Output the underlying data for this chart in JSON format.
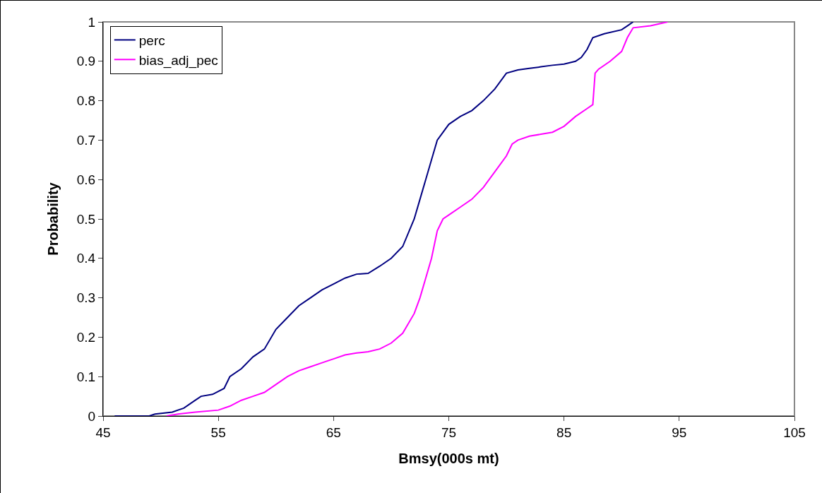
{
  "chart_data": {
    "type": "line",
    "xlabel": "Bmsy(000s mt)",
    "ylabel": "Probability",
    "xlim": [
      45,
      105
    ],
    "xticks": [
      45,
      55,
      65,
      75,
      85,
      95,
      105
    ],
    "ylim": [
      0,
      1
    ],
    "yticks": [
      0,
      0.1,
      0.2,
      0.3,
      0.4,
      0.5,
      0.6,
      0.7,
      0.8,
      0.9,
      1
    ],
    "grid": false,
    "legend": "top left",
    "marker": "none",
    "line_style": "solid",
    "series": [
      {
        "name": "perc",
        "color": "#000080",
        "x": [
          46,
          49,
          49.5,
          51,
          52,
          53,
          53.5,
          54.5,
          55.5,
          56,
          57,
          58,
          59,
          60,
          61,
          62,
          63,
          64,
          65,
          66,
          67,
          68,
          69,
          70,
          71,
          72,
          72.5,
          73,
          73.5,
          74,
          75,
          76,
          77,
          78,
          79,
          80,
          81,
          82,
          83,
          84,
          85,
          86,
          86.5,
          87,
          87.5,
          88.5,
          90,
          90.5,
          91
        ],
        "values": [
          0,
          0,
          0.005,
          0.01,
          0.02,
          0.04,
          0.05,
          0.055,
          0.07,
          0.1,
          0.12,
          0.15,
          0.17,
          0.22,
          0.25,
          0.28,
          0.3,
          0.32,
          0.335,
          0.35,
          0.36,
          0.362,
          0.38,
          0.4,
          0.43,
          0.5,
          0.55,
          0.6,
          0.65,
          0.7,
          0.74,
          0.76,
          0.775,
          0.8,
          0.83,
          0.87,
          0.878,
          0.882,
          0.886,
          0.89,
          0.893,
          0.9,
          0.91,
          0.93,
          0.96,
          0.97,
          0.98,
          0.99,
          1
        ]
      },
      {
        "name": "bias_adj_pec",
        "color": "#ff00ff",
        "x": [
          50.5,
          51.5,
          53,
          55,
          56,
          57,
          58,
          59,
          60,
          61,
          62,
          63,
          64,
          65,
          66,
          67,
          68,
          69,
          70,
          71,
          72,
          72.5,
          73,
          73.5,
          74,
          74.5,
          75,
          76,
          77,
          78,
          79,
          80,
          80.5,
          81,
          82,
          83,
          84,
          85,
          86,
          87,
          87.5,
          87.7,
          88,
          89,
          90,
          90.5,
          91,
          92.5,
          94
        ],
        "values": [
          0,
          0.005,
          0.01,
          0.015,
          0.025,
          0.04,
          0.05,
          0.06,
          0.08,
          0.1,
          0.115,
          0.125,
          0.135,
          0.145,
          0.155,
          0.16,
          0.163,
          0.17,
          0.185,
          0.21,
          0.26,
          0.3,
          0.35,
          0.4,
          0.47,
          0.5,
          0.51,
          0.53,
          0.55,
          0.58,
          0.62,
          0.66,
          0.69,
          0.7,
          0.71,
          0.715,
          0.72,
          0.735,
          0.76,
          0.78,
          0.79,
          0.87,
          0.88,
          0.9,
          0.925,
          0.96,
          0.985,
          0.99,
          1
        ]
      }
    ]
  }
}
